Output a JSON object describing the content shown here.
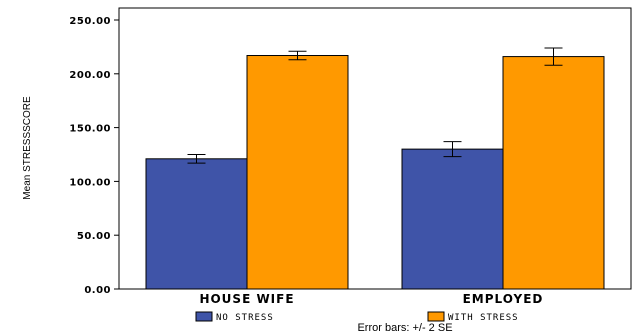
{
  "chart_data": {
    "type": "bar",
    "ylabel": "Mean STRESSSCORE",
    "categories": [
      "HOUSE WIFE",
      "EMPLOYED"
    ],
    "series": [
      {
        "name": "NO STRESS",
        "color": "#3f54a8",
        "values": [
          121,
          130
        ],
        "error": [
          4,
          7
        ]
      },
      {
        "name": "WITH STRESS",
        "color": "#ff9900",
        "values": [
          217,
          216
        ],
        "error": [
          4,
          8
        ]
      }
    ],
    "ylim": [
      0,
      250
    ],
    "yticks": [
      "0.00",
      "50.00",
      "100.00",
      "150.00",
      "200.00",
      "250.00"
    ],
    "legend_position": "bottom",
    "note": "Error bars: +/- 2 SE"
  }
}
